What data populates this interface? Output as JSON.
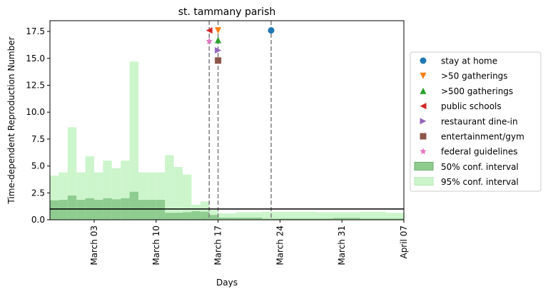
{
  "chart_data": {
    "type": "step-area",
    "title": "st. tammany parish",
    "xlabel": "Days",
    "ylabel": "Time-dependent Reproduction Number",
    "x_range": [
      "2020-02-27",
      "2020-04-07"
    ],
    "ylim": [
      0,
      18.5
    ],
    "x_ticks": [
      {
        "date": "2020-03-03",
        "label": "March 03"
      },
      {
        "date": "2020-03-10",
        "label": "March 10"
      },
      {
        "date": "2020-03-17",
        "label": "March 17"
      },
      {
        "date": "2020-03-24",
        "label": "March 24"
      },
      {
        "date": "2020-03-31",
        "label": "March 31"
      },
      {
        "date": "2020-04-07",
        "label": "April 07"
      }
    ],
    "y_ticks": [
      "0.0",
      "2.5",
      "5.0",
      "7.5",
      "10.0",
      "12.5",
      "15.0",
      "17.5"
    ],
    "reference_line": 1.0,
    "intervals": {
      "ci95": {
        "name": "95% conf. interval",
        "color": "#ccf5cc",
        "segments": [
          {
            "start": "2020-02-27",
            "end": "2020-02-28",
            "low": 0.0,
            "high": 4.1
          },
          {
            "start": "2020-02-28",
            "end": "2020-02-29",
            "low": 0.0,
            "high": 4.4
          },
          {
            "start": "2020-02-29",
            "end": "2020-03-01",
            "low": 0.0,
            "high": 8.6
          },
          {
            "start": "2020-03-01",
            "end": "2020-03-02",
            "low": 0.0,
            "high": 4.4
          },
          {
            "start": "2020-03-02",
            "end": "2020-03-03",
            "low": 0.0,
            "high": 5.9
          },
          {
            "start": "2020-03-03",
            "end": "2020-03-04",
            "low": 0.0,
            "high": 4.4
          },
          {
            "start": "2020-03-04",
            "end": "2020-03-05",
            "low": 0.0,
            "high": 5.5
          },
          {
            "start": "2020-03-05",
            "end": "2020-03-06",
            "low": 0.0,
            "high": 4.8
          },
          {
            "start": "2020-03-06",
            "end": "2020-03-07",
            "low": 0.0,
            "high": 5.5
          },
          {
            "start": "2020-03-07",
            "end": "2020-03-08",
            "low": 0.0,
            "high": 14.7
          },
          {
            "start": "2020-03-08",
            "end": "2020-03-09",
            "low": 0.0,
            "high": 4.4
          },
          {
            "start": "2020-03-09",
            "end": "2020-03-10",
            "low": 0.0,
            "high": 4.4
          },
          {
            "start": "2020-03-10",
            "end": "2020-03-11",
            "low": 0.0,
            "high": 4.4
          },
          {
            "start": "2020-03-11",
            "end": "2020-03-12",
            "low": 0.0,
            "high": 6.0
          },
          {
            "start": "2020-03-12",
            "end": "2020-03-13",
            "low": 0.0,
            "high": 4.9
          },
          {
            "start": "2020-03-13",
            "end": "2020-03-14",
            "low": 0.0,
            "high": 4.2
          },
          {
            "start": "2020-03-14",
            "end": "2020-03-15",
            "low": 0.0,
            "high": 1.4
          },
          {
            "start": "2020-03-15",
            "end": "2020-03-16",
            "low": 0.0,
            "high": 1.7
          },
          {
            "start": "2020-03-16",
            "end": "2020-03-17",
            "low": 0.0,
            "high": 0.9
          },
          {
            "start": "2020-03-17",
            "end": "2020-03-19",
            "low": 0.0,
            "high": 0.6
          },
          {
            "start": "2020-03-19",
            "end": "2020-03-22",
            "low": 0.0,
            "high": 0.7
          },
          {
            "start": "2020-03-22",
            "end": "2020-03-24",
            "low": 0.0,
            "high": 0.75
          },
          {
            "start": "2020-03-24",
            "end": "2020-03-28",
            "low": 0.0,
            "high": 0.75
          },
          {
            "start": "2020-03-28",
            "end": "2020-04-02",
            "low": 0.0,
            "high": 0.7
          },
          {
            "start": "2020-04-02",
            "end": "2020-04-05",
            "low": 0.0,
            "high": 0.75
          },
          {
            "start": "2020-04-05",
            "end": "2020-04-07",
            "low": 0.0,
            "high": 0.65
          }
        ]
      },
      "ci50": {
        "name": "50% conf. interval",
        "color": "#8fcc8f",
        "segments": [
          {
            "start": "2020-02-27",
            "end": "2020-02-28",
            "low": 0.0,
            "high": 1.8
          },
          {
            "start": "2020-02-28",
            "end": "2020-02-29",
            "low": 0.0,
            "high": 1.85
          },
          {
            "start": "2020-02-29",
            "end": "2020-03-01",
            "low": 0.0,
            "high": 2.25
          },
          {
            "start": "2020-03-01",
            "end": "2020-03-02",
            "low": 0.0,
            "high": 1.85
          },
          {
            "start": "2020-03-02",
            "end": "2020-03-03",
            "low": 0.0,
            "high": 2.0
          },
          {
            "start": "2020-03-03",
            "end": "2020-03-04",
            "low": 0.0,
            "high": 1.85
          },
          {
            "start": "2020-03-04",
            "end": "2020-03-05",
            "low": 0.0,
            "high": 2.0
          },
          {
            "start": "2020-03-05",
            "end": "2020-03-06",
            "low": 0.0,
            "high": 1.9
          },
          {
            "start": "2020-03-06",
            "end": "2020-03-07",
            "low": 0.0,
            "high": 2.0
          },
          {
            "start": "2020-03-07",
            "end": "2020-03-08",
            "low": 0.0,
            "high": 2.6
          },
          {
            "start": "2020-03-08",
            "end": "2020-03-10",
            "low": 0.0,
            "high": 1.85
          },
          {
            "start": "2020-03-10",
            "end": "2020-03-11",
            "low": 0.0,
            "high": 1.85
          },
          {
            "start": "2020-03-11",
            "end": "2020-03-13",
            "low": 0.0,
            "high": 0.65
          },
          {
            "start": "2020-03-13",
            "end": "2020-03-14",
            "low": 0.0,
            "high": 0.7
          },
          {
            "start": "2020-03-14",
            "end": "2020-03-15",
            "low": 0.0,
            "high": 0.8
          },
          {
            "start": "2020-03-15",
            "end": "2020-03-16",
            "low": 0.0,
            "high": 0.75
          },
          {
            "start": "2020-03-16",
            "end": "2020-03-17",
            "low": 0.0,
            "high": 0.45
          },
          {
            "start": "2020-03-17",
            "end": "2020-03-22",
            "low": 0.0,
            "high": 0.2
          },
          {
            "start": "2020-03-22",
            "end": "2020-03-24",
            "low": 0.0,
            "high": 0.1
          },
          {
            "start": "2020-03-24",
            "end": "2020-03-30",
            "low": 0.0,
            "high": 0.12
          },
          {
            "start": "2020-03-30",
            "end": "2020-04-02",
            "low": 0.0,
            "high": 0.18
          },
          {
            "start": "2020-04-02",
            "end": "2020-04-07",
            "low": 0.0,
            "high": 0.12
          }
        ]
      }
    },
    "interventions": [
      {
        "name": "stay at home",
        "date": "2020-03-23",
        "y": 17.6,
        "marker": "circle",
        "color": "#1f77b4"
      },
      {
        "name": ">50 gatherings",
        "date": "2020-03-17",
        "y": 17.6,
        "marker": "triangle-down",
        "color": "#ff7f0e"
      },
      {
        "name": ">500 gatherings",
        "date": "2020-03-17",
        "y": 16.7,
        "marker": "triangle-up",
        "color": "#2ca02c"
      },
      {
        "name": "public schools",
        "date": "2020-03-16",
        "y": 17.6,
        "marker": "triangle-left",
        "color": "#d62728"
      },
      {
        "name": "restaurant dine-in",
        "date": "2020-03-17",
        "y": 15.75,
        "marker": "triangle-right",
        "color": "#9467bd"
      },
      {
        "name": "entertainment/gym",
        "date": "2020-03-17",
        "y": 14.8,
        "marker": "square",
        "color": "#8c564b"
      },
      {
        "name": "federal guidelines",
        "date": "2020-03-16",
        "y": 16.6,
        "marker": "star",
        "color": "#e377c2"
      }
    ],
    "vlines": [
      "2020-03-16",
      "2020-03-17",
      "2020-03-23"
    ],
    "legend_position": "right"
  }
}
